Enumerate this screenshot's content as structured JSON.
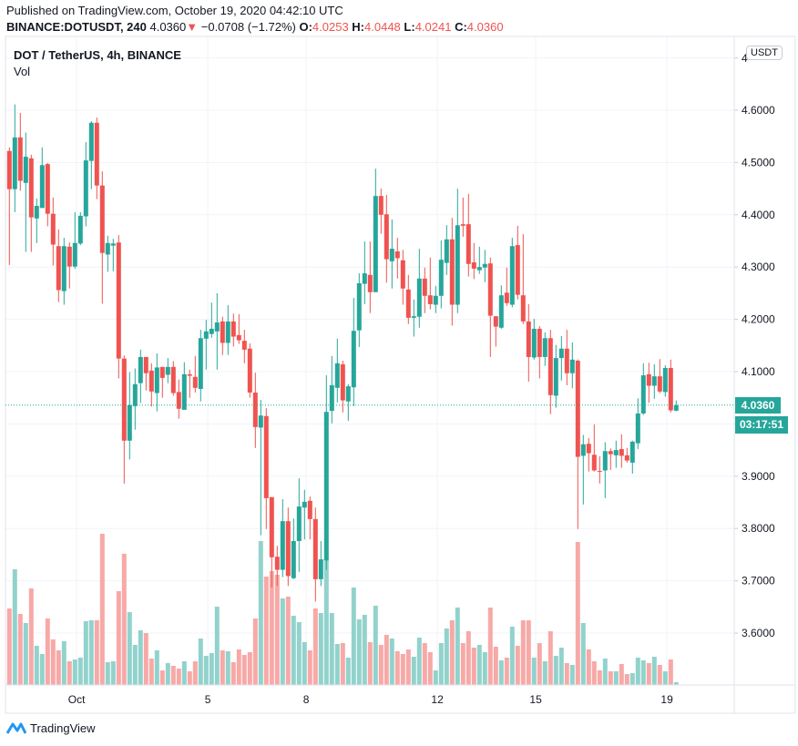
{
  "header": {
    "published": "Published on TradingView.com, October 19, 2020 04:42:10 UTC",
    "symbol": "BINANCE:DOTUSDT, 240",
    "last": "4.0360",
    "change": "−0.0708 (−1.72%)",
    "o_label": "O:",
    "o": "4.0253",
    "h_label": "H:",
    "h": "4.0448",
    "l_label": "L:",
    "l": "4.0241",
    "c_label": "C:",
    "c": "4.0360"
  },
  "legend": {
    "title": "DOT / TetherUS, 4h, BINANCE",
    "volume": "Vol"
  },
  "currency_badge": "USDT",
  "price_label": "4.0360",
  "countdown": "03:17:51",
  "footer": {
    "brand": "TradingView"
  },
  "colors": {
    "up": "#26a69a",
    "down": "#ef5350",
    "up_vol": "#92d2cc",
    "down_vol": "#f7a9a7",
    "grid": "#f0f3fa"
  },
  "chart_data": {
    "type": "candlestick",
    "title": "DOT / TetherUS, 4h, BINANCE",
    "ylim": [
      3.5,
      4.74
    ],
    "y_ticks": [
      "4.6000",
      "4.5000",
      "4.4000",
      "4.3000",
      "4.2000",
      "4.1000",
      "3.9000",
      "3.8000",
      "3.7000",
      "3.6000"
    ],
    "y_tick_values": [
      4.6,
      4.5,
      4.4,
      4.3,
      4.2,
      4.1,
      3.9,
      3.8,
      3.7,
      3.6
    ],
    "x_ticks": [
      {
        "label": "Oct",
        "index": 13.3
      },
      {
        "label": "5",
        "index": 37.3
      },
      {
        "label": "8",
        "index": 55.3
      },
      {
        "label": "12",
        "index": 79.3
      },
      {
        "label": "15",
        "index": 97.3
      },
      {
        "label": "19",
        "index": 121.3
      }
    ],
    "grid": true,
    "current_price": 4.036,
    "ohlc": [
      [
        4.522,
        4.529,
        4.304,
        4.449
      ],
      [
        4.449,
        4.611,
        4.405,
        4.548
      ],
      [
        4.548,
        4.595,
        4.446,
        4.465
      ],
      [
        4.461,
        4.557,
        4.329,
        4.511
      ],
      [
        4.508,
        4.515,
        4.329,
        4.395
      ],
      [
        4.393,
        4.431,
        4.346,
        4.417
      ],
      [
        4.413,
        4.529,
        4.413,
        4.495
      ],
      [
        4.497,
        4.499,
        4.378,
        4.402
      ],
      [
        4.402,
        4.433,
        4.303,
        4.343
      ],
      [
        4.34,
        4.372,
        4.233,
        4.256
      ],
      [
        4.254,
        4.356,
        4.228,
        4.34
      ],
      [
        4.339,
        4.347,
        4.259,
        4.301
      ],
      [
        4.301,
        4.405,
        4.297,
        4.346
      ],
      [
        4.345,
        4.405,
        4.342,
        4.398
      ],
      [
        4.397,
        4.539,
        4.378,
        4.504
      ],
      [
        4.503,
        4.579,
        4.449,
        4.576
      ],
      [
        4.576,
        4.586,
        4.43,
        4.456
      ],
      [
        4.456,
        4.483,
        4.23,
        4.327
      ],
      [
        4.324,
        4.36,
        4.291,
        4.346
      ],
      [
        4.341,
        4.354,
        4.292,
        4.345
      ],
      [
        4.347,
        4.361,
        4.087,
        4.125
      ],
      [
        4.125,
        4.131,
        3.886,
        3.968
      ],
      [
        3.968,
        4.099,
        3.932,
        4.036
      ],
      [
        4.034,
        4.106,
        3.989,
        4.076
      ],
      [
        4.078,
        4.142,
        4.04,
        4.128
      ],
      [
        4.128,
        4.128,
        4.064,
        4.097
      ],
      [
        4.102,
        4.116,
        4.033,
        4.062
      ],
      [
        4.059,
        4.135,
        4.024,
        4.108
      ],
      [
        4.109,
        4.109,
        4.05,
        4.088
      ],
      [
        4.094,
        4.126,
        4.078,
        4.109
      ],
      [
        4.109,
        4.12,
        4.054,
        4.059
      ],
      [
        4.061,
        4.085,
        4.01,
        4.029
      ],
      [
        4.027,
        4.118,
        4.027,
        4.095
      ],
      [
        4.095,
        4.104,
        4.05,
        4.092
      ],
      [
        4.09,
        4.13,
        4.06,
        4.069
      ],
      [
        4.067,
        4.18,
        4.043,
        4.164
      ],
      [
        4.163,
        4.199,
        4.104,
        4.177
      ],
      [
        4.172,
        4.232,
        4.165,
        4.182
      ],
      [
        4.177,
        4.25,
        4.104,
        4.194
      ],
      [
        4.196,
        4.205,
        4.132,
        4.155
      ],
      [
        4.155,
        4.227,
        4.132,
        4.196
      ],
      [
        4.196,
        4.211,
        4.148,
        4.167
      ],
      [
        4.17,
        4.21,
        4.153,
        4.16
      ],
      [
        4.159,
        4.18,
        4.116,
        4.142
      ],
      [
        4.144,
        4.154,
        4.05,
        4.06
      ],
      [
        4.06,
        4.098,
        3.954,
        3.994
      ],
      [
        3.993,
        4.046,
        3.787,
        4.016
      ],
      [
        4.015,
        4.03,
        3.799,
        3.858
      ],
      [
        3.86,
        3.86,
        3.687,
        3.745
      ],
      [
        3.746,
        3.767,
        3.69,
        3.721
      ],
      [
        3.721,
        3.856,
        3.707,
        3.814
      ],
      [
        3.814,
        3.84,
        3.69,
        3.709
      ],
      [
        3.705,
        3.819,
        3.703,
        3.776
      ],
      [
        3.776,
        3.896,
        3.717,
        3.842
      ],
      [
        3.84,
        3.874,
        3.779,
        3.851
      ],
      [
        3.853,
        3.861,
        3.779,
        3.818
      ],
      [
        3.818,
        3.84,
        3.66,
        3.703
      ],
      [
        3.703,
        3.776,
        3.69,
        3.741
      ],
      [
        3.739,
        4.093,
        3.721,
        4.023
      ],
      [
        4.025,
        4.13,
        4.001,
        4.074
      ],
      [
        4.069,
        4.163,
        4.041,
        4.116
      ],
      [
        4.114,
        4.121,
        4.022,
        4.045
      ],
      [
        4.043,
        4.076,
        4.006,
        4.072
      ],
      [
        4.07,
        4.241,
        4.034,
        4.178
      ],
      [
        4.179,
        4.288,
        4.147,
        4.269
      ],
      [
        4.268,
        4.349,
        4.229,
        4.288
      ],
      [
        4.285,
        4.349,
        4.212,
        4.252
      ],
      [
        4.252,
        4.488,
        4.252,
        4.436
      ],
      [
        4.436,
        4.45,
        4.364,
        4.4
      ],
      [
        4.401,
        4.438,
        4.27,
        4.315
      ],
      [
        4.311,
        4.391,
        4.259,
        4.335
      ],
      [
        4.33,
        4.356,
        4.278,
        4.317
      ],
      [
        4.313,
        4.333,
        4.228,
        4.259
      ],
      [
        4.257,
        4.285,
        4.191,
        4.203
      ],
      [
        4.203,
        4.238,
        4.167,
        4.206
      ],
      [
        4.205,
        4.335,
        4.184,
        4.278
      ],
      [
        4.278,
        4.299,
        4.212,
        4.245
      ],
      [
        4.246,
        4.318,
        4.219,
        4.229
      ],
      [
        4.228,
        4.264,
        4.212,
        4.245
      ],
      [
        4.245,
        4.351,
        4.221,
        4.314
      ],
      [
        4.308,
        4.38,
        4.285,
        4.353
      ],
      [
        4.353,
        4.394,
        4.188,
        4.228
      ],
      [
        4.228,
        4.45,
        4.212,
        4.38
      ],
      [
        4.382,
        4.433,
        4.358,
        4.379
      ],
      [
        4.382,
        4.44,
        4.282,
        4.306
      ],
      [
        4.309,
        4.346,
        4.277,
        4.297
      ],
      [
        4.294,
        4.339,
        4.287,
        4.3
      ],
      [
        4.299,
        4.333,
        4.271,
        4.306
      ],
      [
        4.307,
        4.318,
        4.128,
        4.207
      ],
      [
        4.206,
        4.206,
        4.148,
        4.186
      ],
      [
        4.184,
        4.265,
        4.182,
        4.246
      ],
      [
        4.251,
        4.299,
        4.226,
        4.231
      ],
      [
        4.228,
        4.356,
        4.223,
        4.34
      ],
      [
        4.342,
        4.379,
        4.238,
        4.247
      ],
      [
        4.246,
        4.363,
        4.191,
        4.196
      ],
      [
        4.196,
        4.229,
        4.081,
        4.128
      ],
      [
        4.127,
        4.201,
        4.123,
        4.182
      ],
      [
        4.182,
        4.187,
        4.087,
        4.128
      ],
      [
        4.128,
        4.175,
        4.111,
        4.164
      ],
      [
        4.164,
        4.18,
        4.019,
        4.055
      ],
      [
        4.054,
        4.151,
        4.031,
        4.126
      ],
      [
        4.126,
        4.168,
        4.083,
        4.144
      ],
      [
        4.144,
        4.18,
        4.074,
        4.097
      ],
      [
        4.097,
        4.156,
        4.068,
        4.123
      ],
      [
        4.121,
        4.123,
        3.799,
        3.937
      ],
      [
        3.939,
        3.979,
        3.846,
        3.961
      ],
      [
        3.962,
        3.973,
        3.909,
        3.944
      ],
      [
        3.941,
        3.999,
        3.909,
        3.911
      ],
      [
        3.91,
        3.938,
        3.886,
        3.909
      ],
      [
        3.911,
        3.965,
        3.858,
        3.948
      ],
      [
        3.948,
        3.953,
        3.912,
        3.942
      ],
      [
        3.94,
        3.968,
        3.916,
        3.95
      ],
      [
        3.952,
        3.98,
        3.916,
        3.939
      ],
      [
        3.94,
        3.954,
        3.926,
        3.93
      ],
      [
        3.926,
        3.968,
        3.905,
        3.966
      ],
      [
        3.963,
        4.049,
        3.952,
        4.02
      ],
      [
        4.02,
        4.116,
        4.017,
        4.093
      ],
      [
        4.095,
        4.117,
        4.04,
        4.073
      ],
      [
        4.073,
        4.114,
        4.048,
        4.091
      ],
      [
        4.091,
        4.124,
        4.059,
        4.062
      ],
      [
        4.061,
        4.112,
        4.052,
        4.107
      ],
      [
        4.107,
        4.123,
        4.022,
        4.026
      ],
      [
        4.0253,
        4.0448,
        4.0241,
        4.036
      ]
    ],
    "volume_relative": [
      252,
      381,
      234,
      204,
      318,
      129,
      102,
      219,
      150,
      114,
      144,
      78,
      84,
      90,
      210,
      213,
      213,
      498,
      75,
      78,
      309,
      432,
      240,
      132,
      180,
      171,
      87,
      114,
      48,
      72,
      63,
      54,
      78,
      45,
      78,
      153,
      96,
      105,
      258,
      114,
      111,
      75,
      117,
      99,
      108,
      219,
      474,
      357,
      375,
      363,
      285,
      291,
      228,
      207,
      141,
      114,
      252,
      237,
      414,
      237,
      135,
      138,
      90,
      321,
      216,
      231,
      141,
      261,
      132,
      165,
      153,
      111,
      102,
      117,
      93,
      156,
      138,
      108,
      48,
      138,
      186,
      213,
      255,
      138,
      177,
      123,
      132,
      108,
      255,
      126,
      81,
      90,
      192,
      129,
      213,
      213,
      90,
      138,
      78,
      177,
      96,
      123,
      72,
      66,
      471,
      204,
      117,
      78,
      48,
      87,
      45,
      45,
      69,
      36,
      39,
      90,
      81,
      72,
      93,
      66,
      45,
      84,
      9
    ]
  }
}
